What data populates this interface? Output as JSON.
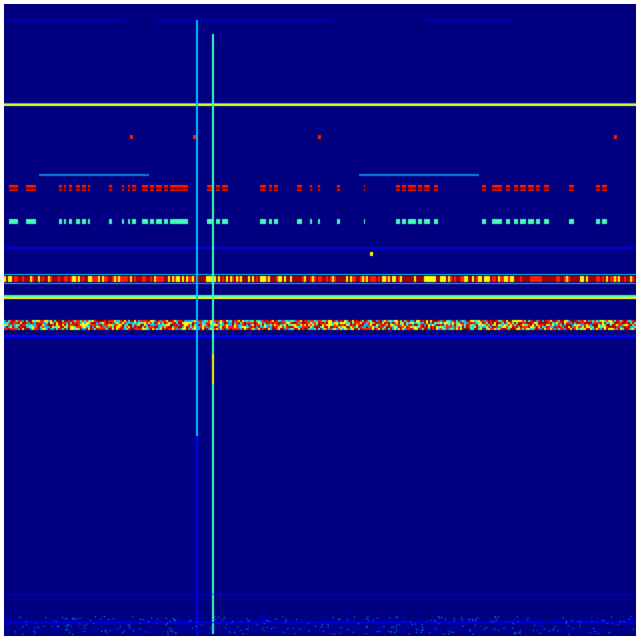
{
  "image": {
    "kind": "spectrogram",
    "colormap": "jet",
    "colors": {
      "background": "#000080",
      "low": "#0000ff",
      "mid_low": "#00c0ff",
      "mid": "#40ffb0",
      "mid_high": "#ffff00",
      "high": "#ff2000",
      "peak": "#a00000"
    }
  }
}
